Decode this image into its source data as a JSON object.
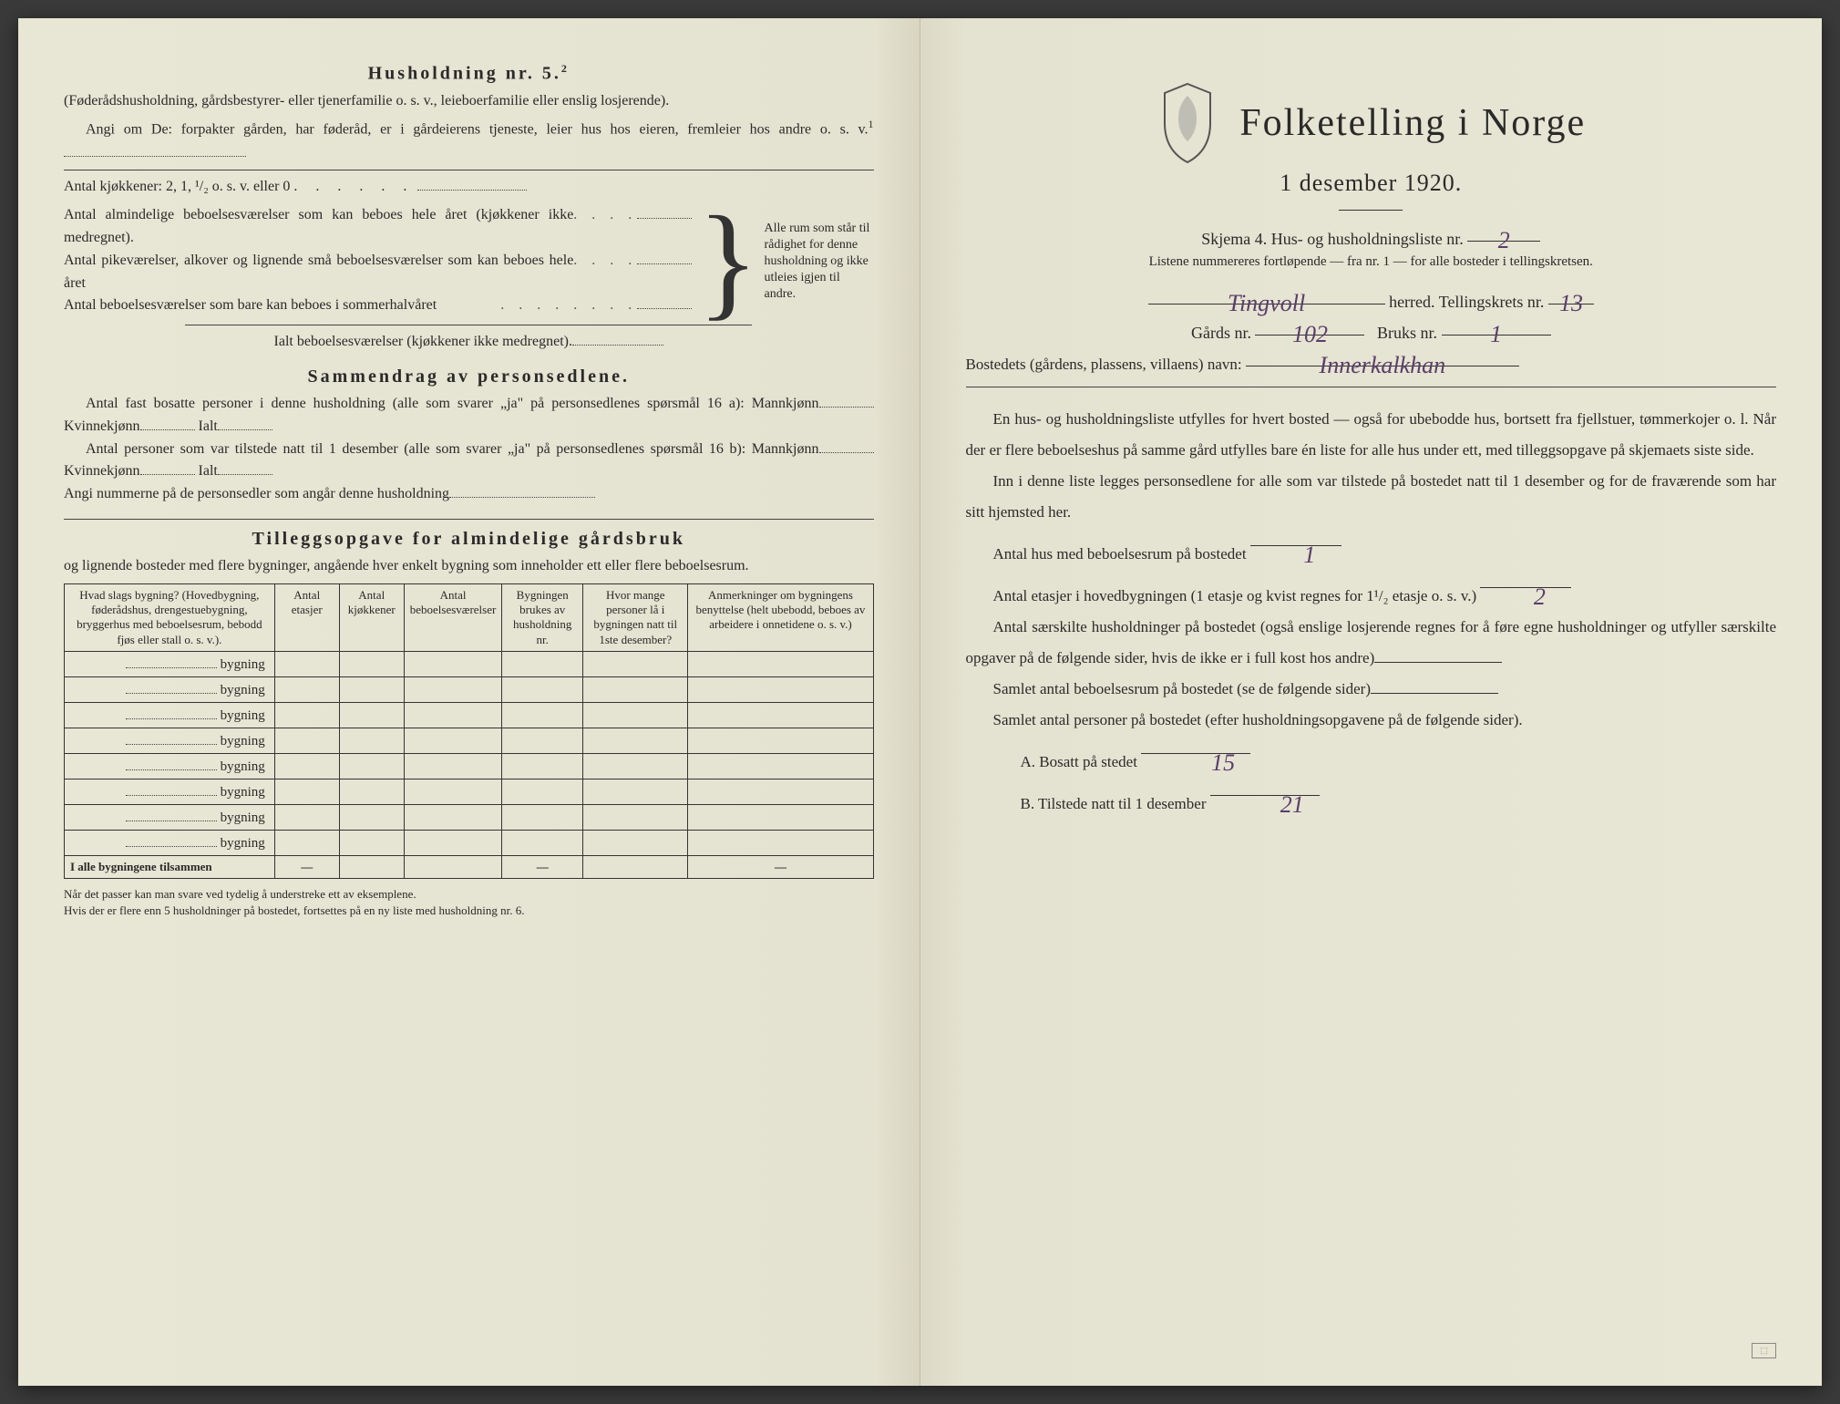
{
  "colors": {
    "paper": "#e8e6d4",
    "ink": "#2a2a2a",
    "handwriting": "#5a3d6b",
    "border": "#333333"
  },
  "left": {
    "h5_title": "Husholdning nr. 5.",
    "h5_sup": "2",
    "h5_sub": "(Føderådshusholdning, gårdsbestyrer- eller tjenerfamilie o. s. v., leieboerfamilie eller enslig losjerende).",
    "angi_om": "Angi om De:  forpakter gården, har føderåd, er i gårdeierens tjeneste, leier hus hos eieren, fremleier hos andre o. s. v.",
    "angi_sup": "1",
    "kjokkener": "Antal kjøkkener: 2, 1, ¹/₂ o. s. v. eller 0",
    "brace_rows": [
      "Antal almindelige beboelsesværelser som kan beboes hele året (kjøkkener ikke medregnet).",
      "Antal pikeværelser, alkover og lignende små beboelsesværelser som kan beboes hele året",
      "Antal beboelsesværelser som bare kan beboes i sommerhalvåret"
    ],
    "brace_right": "Alle rum som står til rådighet for denne husholdning og ikke utleies igjen til andre.",
    "ialt": "Ialt beboelsesværelser  (kjøkkener ikke medregnet).",
    "samm_title": "Sammendrag av personsedlene.",
    "samm_p1a": "Antal fast bosatte personer i denne husholdning (alle som svarer „ja\" på personsedlenes spørsmål 16 a): Mannkjønn",
    "samm_kvinne": "Kvinnekjønn",
    "samm_ialt": "Ialt",
    "samm_p2a": "Antal personer som var tilstede natt til 1 desember (alle som svarer „ja\" på personsedlenes spørsmål 16 b): Mannkjønn",
    "samm_nummer": "Angi nummerne på de personsedler som angår denne husholdning",
    "tillegg_title": "Tilleggsopgave for almindelige gårdsbruk",
    "tillegg_sub": "og lignende bosteder med flere bygninger, angående hver enkelt bygning som inneholder ett eller flere beboelsesrum.",
    "table": {
      "headers": [
        "Hvad slags bygning?\n(Hovedbygning, føderådshus, drengestuebygning, bryggerhus med beboelsesrum, bebodd fjøs eller stall o. s. v.).",
        "Antal etasjer",
        "Antal kjøkkener",
        "Antal beboelsesværelser",
        "Bygningen brukes av husholdning nr.",
        "Hvor mange personer lå i bygningen natt til 1ste desember?",
        "Anmerkninger om bygningens benyttelse (helt ubebodd, beboes av arbeidere i onnetidene o. s. v.)"
      ],
      "row_label": "bygning",
      "row_count": 8,
      "sum_label": "I alle bygningene tilsammen"
    },
    "footnote": "Når det passer kan man svare ved tydelig å understreke ett av eksemplene.\nHvis der er flere enn 5 husholdninger på bostedet, fortsettes på en ny liste med husholdning nr. 6."
  },
  "right": {
    "title": "Folketelling i Norge",
    "subtitle": "1 desember 1920.",
    "skjema": "Skjema 4.   Hus- og husholdningsliste nr.",
    "skjema_val": "2",
    "listene": "Listene nummereres fortløpende — fra nr. 1 — for alle bosteder i tellingskretsen.",
    "herred_val": "Tingvoll",
    "herred_lbl": "herred.   Tellingskrets nr.",
    "krets_val": "13",
    "gards_lbl": "Gårds nr.",
    "gards_val": "102",
    "bruks_lbl": "Bruks nr.",
    "bruks_val": "1",
    "bosted_lbl": "Bostedets (gårdens, plassens, villaens) navn:",
    "bosted_val": "Innerkalkhan",
    "para1": "En hus- og husholdningsliste utfylles for hvert bosted — også for ubebodde hus, bortsett fra fjellstuer, tømmerkojer o. l.  Når der er flere beboelseshus på samme gård utfylles bare én liste for alle hus under ett, med tilleggsopgave på skjemaets siste side.",
    "para2": "Inn i denne liste legges personsedlene for alle som var tilstede på bostedet natt til 1 desember og for de fraværende som har sitt hjemsted her.",
    "antal_hus": "Antal hus med beboelsesrum på bostedet",
    "antal_hus_val": "1",
    "antal_etasjer": "Antal etasjer i hovedbygningen (1 etasje og kvist regnes for 1¹/₂ etasje o. s. v.)",
    "antal_etasjer_val": "2",
    "saerskilte": "Antal særskilte husholdninger på bostedet (også enslige losjerende regnes for å føre egne husholdninger og utfyller særskilte opgaver på de følgende sider, hvis de ikke er i full kost hos andre)",
    "samlet_rum": "Samlet antal beboelsesrum på bostedet (se de følgende sider)",
    "samlet_pers": "Samlet antal personer på bostedet (efter husholdningsopgavene på de følgende sider).",
    "a_label": "A.   Bosatt på stedet",
    "a_val": "15",
    "b_label": "B.   Tilstede natt til 1 desember",
    "b_val": "21"
  }
}
